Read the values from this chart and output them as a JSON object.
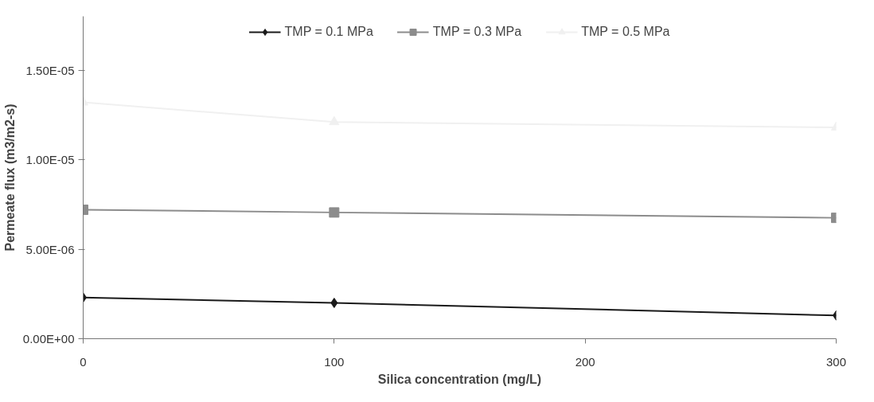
{
  "chart_data": {
    "type": "line",
    "xlabel": "Silica concentration (mg/L)",
    "ylabel": "Permeate flux (m3/m2-s)",
    "x": [
      0,
      100,
      300
    ],
    "series": [
      {
        "name": "TMP = 0.1 MPa",
        "color": "#1a1a1a",
        "marker": "diamond",
        "values": [
          2.3e-06,
          2e-06,
          1.3e-06
        ]
      },
      {
        "name": "TMP = 0.3 MPa",
        "color": "#8c8c8c",
        "marker": "square",
        "values": [
          7.2e-06,
          7.05e-06,
          6.75e-06
        ]
      },
      {
        "name": "TMP = 0.5 MPa",
        "color": "#f0f0f0",
        "marker": "triangle",
        "values": [
          1.32e-05,
          1.21e-05,
          1.18e-05
        ]
      }
    ],
    "xlim": [
      0,
      300
    ],
    "xticks": [
      0,
      100,
      200,
      300
    ],
    "ylim": [
      0,
      1.8e-05
    ],
    "yticks": [
      {
        "value": 0,
        "label": "0.00E+00"
      },
      {
        "value": 5e-06,
        "label": "5.00E-06"
      },
      {
        "value": 1e-05,
        "label": "1.00E-05"
      },
      {
        "value": 1.5e-05,
        "label": "1.50E-05"
      }
    ],
    "grid": false,
    "legend": "top"
  }
}
